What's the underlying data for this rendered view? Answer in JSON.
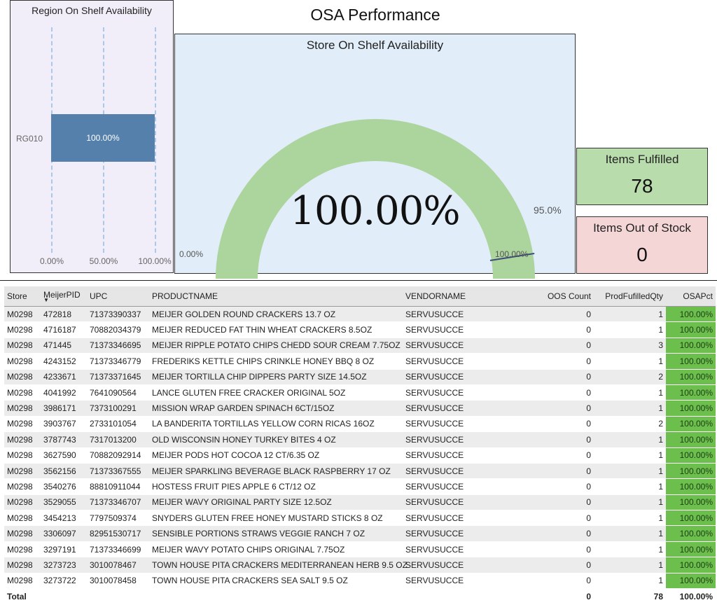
{
  "page_title": "OSA Performance",
  "region_chart": {
    "title": "Region On Shelf Availability",
    "category": "RG010",
    "bar_label": "100.00%",
    "ticks": [
      "0.00%",
      "50.00%",
      "100.00%"
    ],
    "color": "#5580ac"
  },
  "chart_data": [
    {
      "type": "bar",
      "orientation": "horizontal",
      "title": "Region On Shelf Availability",
      "categories": [
        "RG010"
      ],
      "values": [
        100.0
      ],
      "xlim": [
        0,
        100
      ],
      "tick_labels": [
        "0.00%",
        "50.00%",
        "100.00%"
      ],
      "grid": true
    },
    {
      "type": "gauge",
      "title": "Store On Shelf Availability",
      "value": 100.0,
      "min": 0,
      "max": 100,
      "target": 95.0
    }
  ],
  "gauge": {
    "title": "Store On Shelf Availability",
    "value_label": "100.00%",
    "min_label": "0.00%",
    "max_label": "100.00%",
    "target_label": "95.0%",
    "value": 100.0,
    "target": 95.0,
    "fill_color": "#acd49d",
    "bg_color": "#e1edf8"
  },
  "cards": {
    "fulfilled": {
      "label": "Items Fulfilled",
      "value": "78",
      "color": "#b8dcab"
    },
    "oos": {
      "label": "Items Out of Stock",
      "value": "0",
      "color": "#f5d6d6"
    }
  },
  "table": {
    "columns": [
      "Store",
      "MeijerPID",
      "UPC",
      "PRODUCTNAME",
      "VENDORNAME",
      "OOS Count",
      "ProdFufilledQty",
      "OSAPct"
    ],
    "rows": [
      [
        "M0298",
        "472818",
        "71373390337",
        "MEIJER GOLDEN ROUND CRACKERS 13.7 OZ",
        "SERVUSUCCE",
        "0",
        "1",
        "100.00%"
      ],
      [
        "M0298",
        "4716187",
        "70882034379",
        "MEIJER REDUCED FAT THIN WHEAT CRACKERS 8.5OZ",
        "SERVUSUCCE",
        "0",
        "1",
        "100.00%"
      ],
      [
        "M0298",
        "471445",
        "71373346695",
        "MEIJER RIPPLE POTATO CHIPS CHEDD SOUR CREAM 7.75OZ",
        "SERVUSUCCE",
        "0",
        "3",
        "100.00%"
      ],
      [
        "M0298",
        "4243152",
        "71373346779",
        "FREDERIKS KETTLE CHIPS CRINKLE HONEY BBQ 8 OZ",
        "SERVUSUCCE",
        "0",
        "1",
        "100.00%"
      ],
      [
        "M0298",
        "4233671",
        "71373371645",
        "MEIJER TORTILLA CHIP DIPPERS PARTY SIZE 14.5OZ",
        "SERVUSUCCE",
        "0",
        "2",
        "100.00%"
      ],
      [
        "M0298",
        "4041992",
        "7641090564",
        "LANCE GLUTEN FREE CRACKER ORIGINAL 5OZ",
        "SERVUSUCCE",
        "0",
        "1",
        "100.00%"
      ],
      [
        "M0298",
        "3986171",
        "7373100291",
        "MISSION WRAP GARDEN SPINACH 6CT/15OZ",
        "SERVUSUCCE",
        "0",
        "1",
        "100.00%"
      ],
      [
        "M0298",
        "3903767",
        "2733101054",
        "LA BANDERITA TORTILLAS YELLOW CORN RICAS 16OZ",
        "SERVUSUCCE",
        "0",
        "2",
        "100.00%"
      ],
      [
        "M0298",
        "3787743",
        "7317013200",
        "OLD WISCONSIN HONEY TURKEY BITES 4 OZ",
        "SERVUSUCCE",
        "0",
        "1",
        "100.00%"
      ],
      [
        "M0298",
        "3627590",
        "70882092914",
        "MEIJER PODS HOT COCOA 12 CT/6.35 OZ",
        "SERVUSUCCE",
        "0",
        "1",
        "100.00%"
      ],
      [
        "M0298",
        "3562156",
        "71373367555",
        "MEIJER SPARKLING BEVERAGE BLACK RASPBERRY 17 OZ",
        "SERVUSUCCE",
        "0",
        "1",
        "100.00%"
      ],
      [
        "M0298",
        "3540276",
        "88810911044",
        "HOSTESS FRUIT PIES APPLE 6 CT/12 OZ",
        "SERVUSUCCE",
        "0",
        "1",
        "100.00%"
      ],
      [
        "M0298",
        "3529055",
        "71373346707",
        "MEIJER WAVY ORIGINAL PARTY SIZE 12.5OZ",
        "SERVUSUCCE",
        "0",
        "1",
        "100.00%"
      ],
      [
        "M0298",
        "3454213",
        "7797509374",
        "SNYDERS GLUTEN FREE HONEY MUSTARD STICKS 8 OZ",
        "SERVUSUCCE",
        "0",
        "1",
        "100.00%"
      ],
      [
        "M0298",
        "3306097",
        "82951530717",
        "SENSIBLE PORTIONS STRAWS VEGGIE RANCH 7 OZ",
        "SERVUSUCCE",
        "0",
        "1",
        "100.00%"
      ],
      [
        "M0298",
        "3297191",
        "71373346699",
        "MEIJER WAVY POTATO CHIPS ORIGINAL 7.75OZ",
        "SERVUSUCCE",
        "0",
        "1",
        "100.00%"
      ],
      [
        "M0298",
        "3273723",
        "3010078467",
        "TOWN HOUSE PITA CRACKERS MEDITERRANEAN HERB 9.5 OZ",
        "SERVUSUCCE",
        "0",
        "1",
        "100.00%"
      ],
      [
        "M0298",
        "3273722",
        "3010078458",
        "TOWN HOUSE PITA CRACKERS SEA SALT 9.5 OZ",
        "SERVUSUCCE",
        "0",
        "1",
        "100.00%"
      ]
    ],
    "total": {
      "label": "Total",
      "oos": "0",
      "fulfilled": "78",
      "osa": "100.00%"
    },
    "osa_color": "#6cbf4c"
  }
}
